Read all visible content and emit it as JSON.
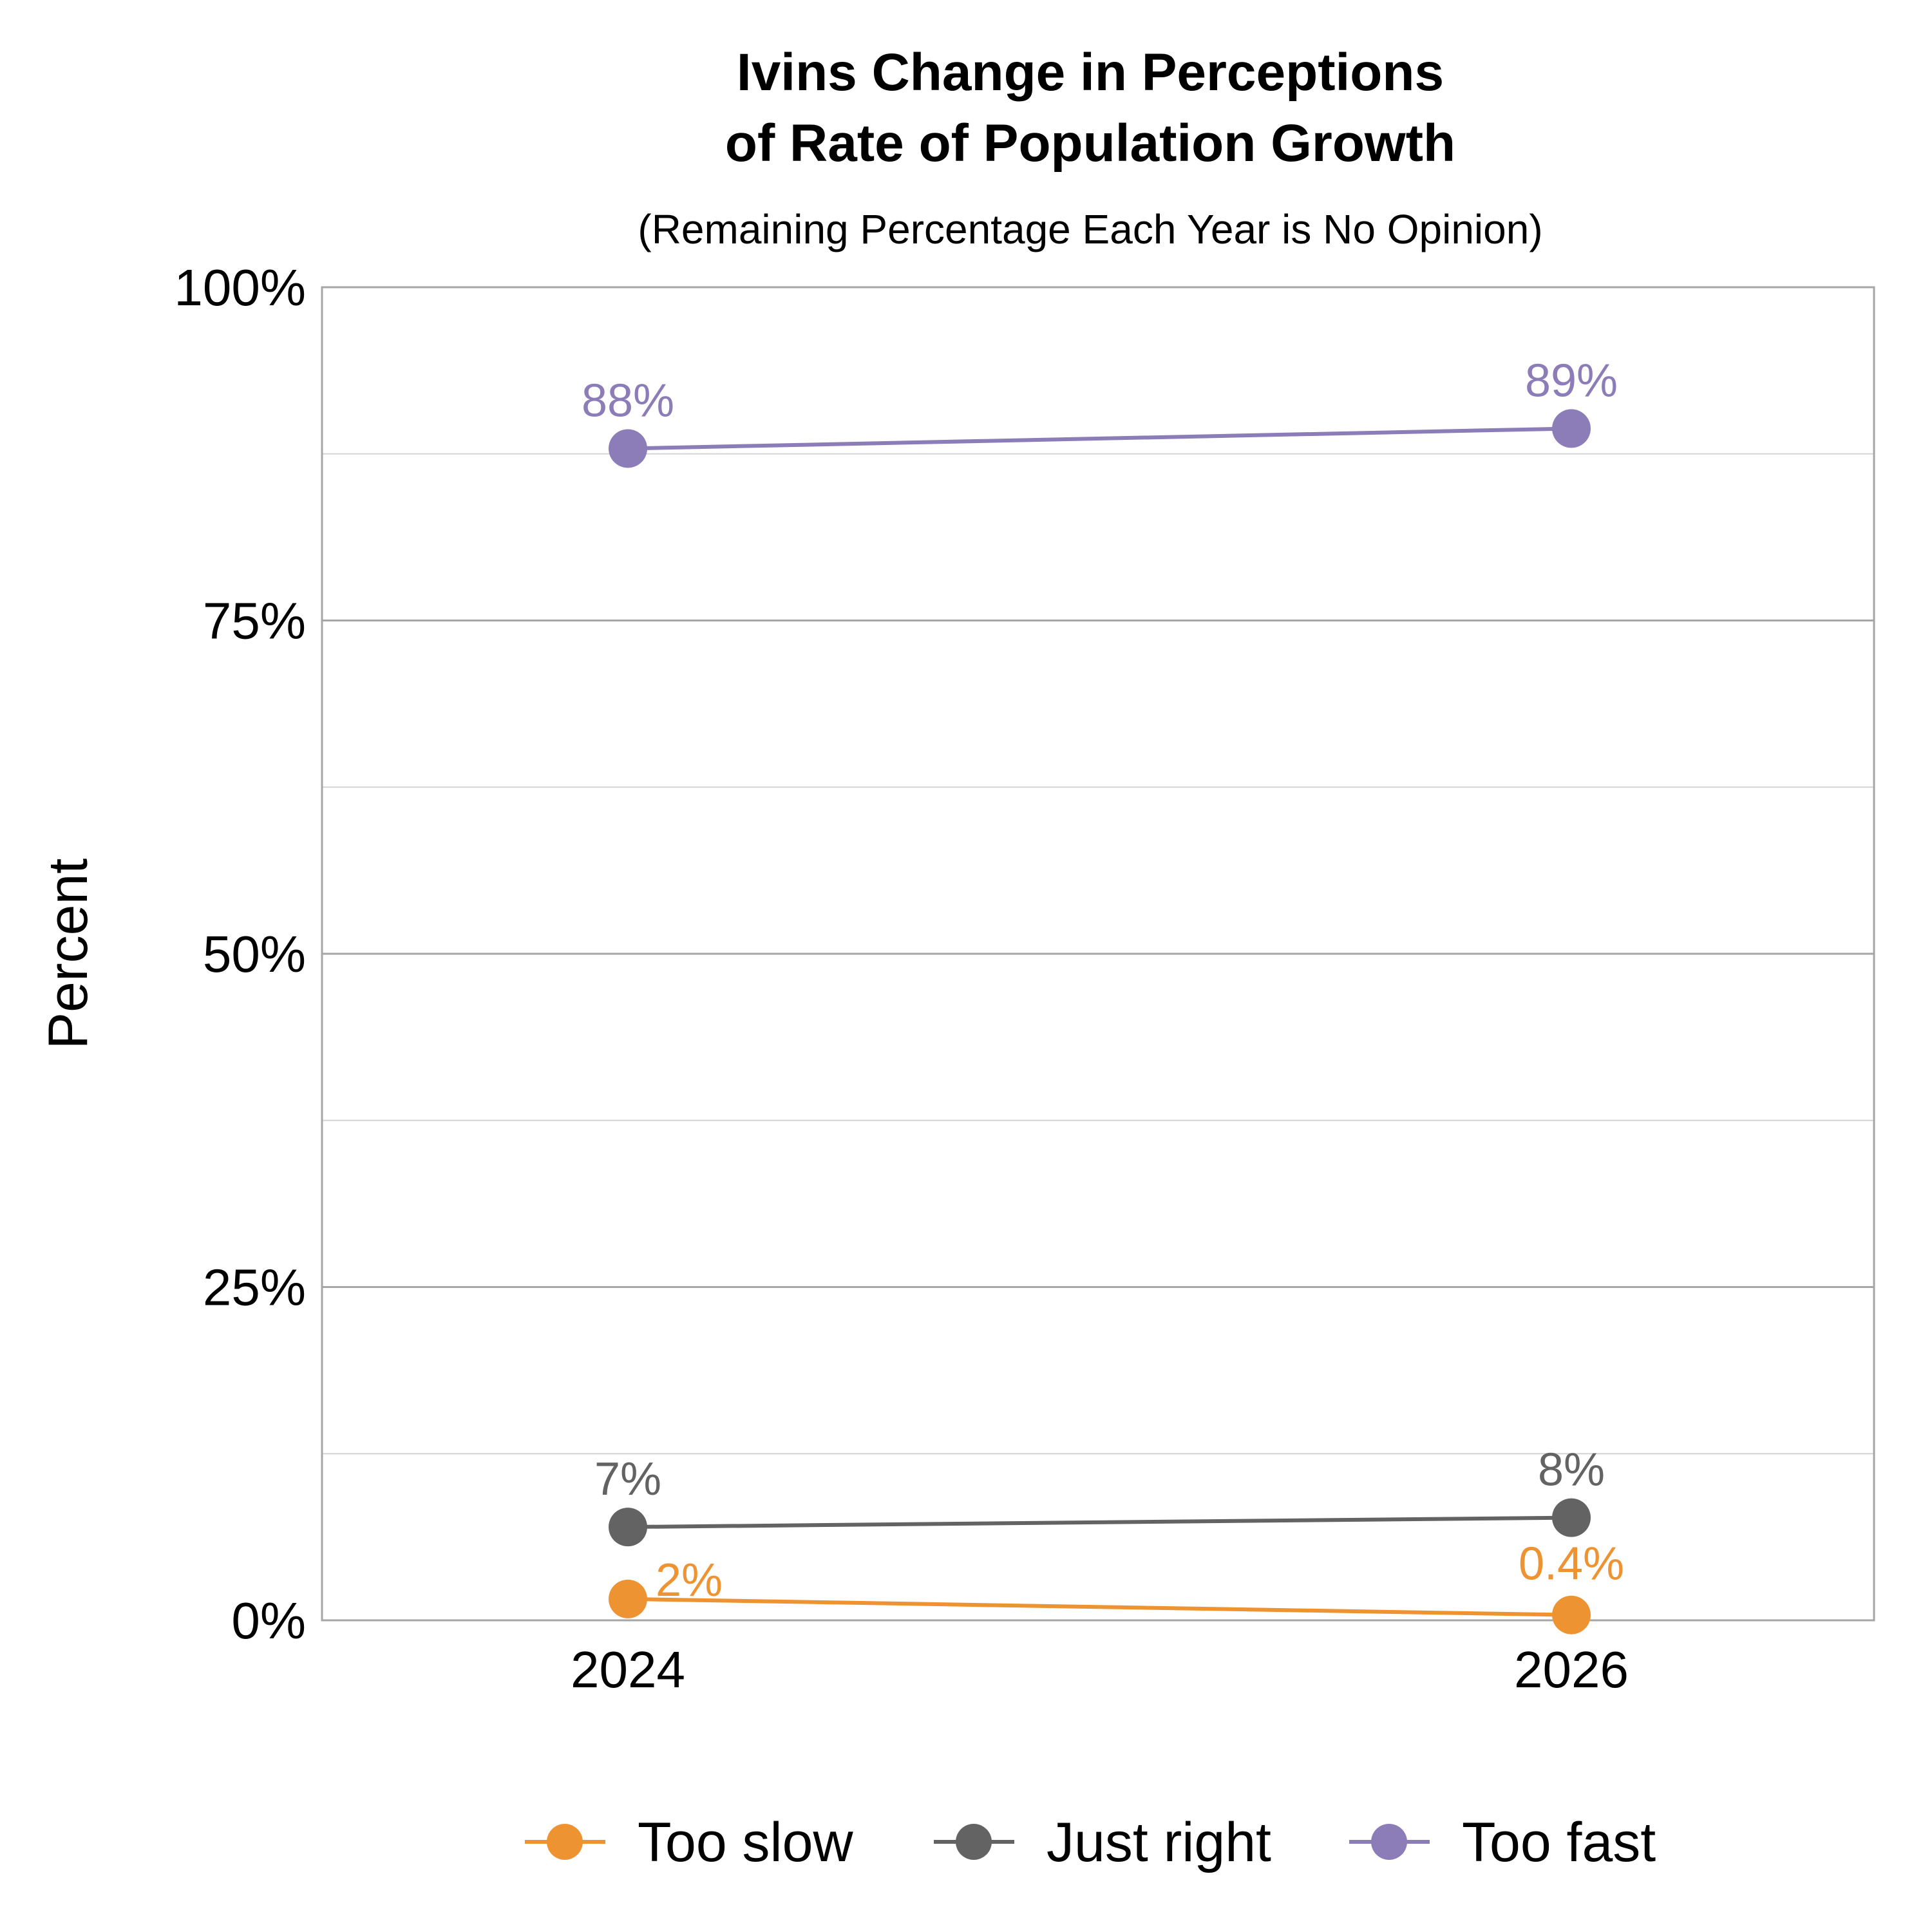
{
  "chart_data": {
    "type": "line",
    "title_lines": [
      "Ivins Change in Perceptions",
      "of Rate of Population Growth"
    ],
    "subtitle": "(Remaining Percentage Each Year is No Opinion)",
    "ylabel": "Percent",
    "xlabel": "",
    "ylim": [
      0,
      100
    ],
    "yticks": [
      0,
      25,
      50,
      75,
      100
    ],
    "ytick_labels": [
      "0%",
      "25%",
      "50%",
      "75%",
      "100%"
    ],
    "categories": [
      "2024",
      "2026"
    ],
    "grid": true,
    "legend_position": "bottom",
    "series": [
      {
        "name": "Too slow",
        "color": "#EE9332",
        "values": [
          1.6,
          0.4
        ],
        "labels": [
          "2%",
          "0.4%"
        ]
      },
      {
        "name": "Just right",
        "color": "#636363",
        "values": [
          7.0,
          7.7
        ],
        "labels": [
          "7%",
          "8%"
        ]
      },
      {
        "name": "Too fast",
        "color": "#8C7DB8",
        "values": [
          87.9,
          89.4
        ],
        "labels": [
          "88%",
          "89%"
        ]
      }
    ]
  }
}
